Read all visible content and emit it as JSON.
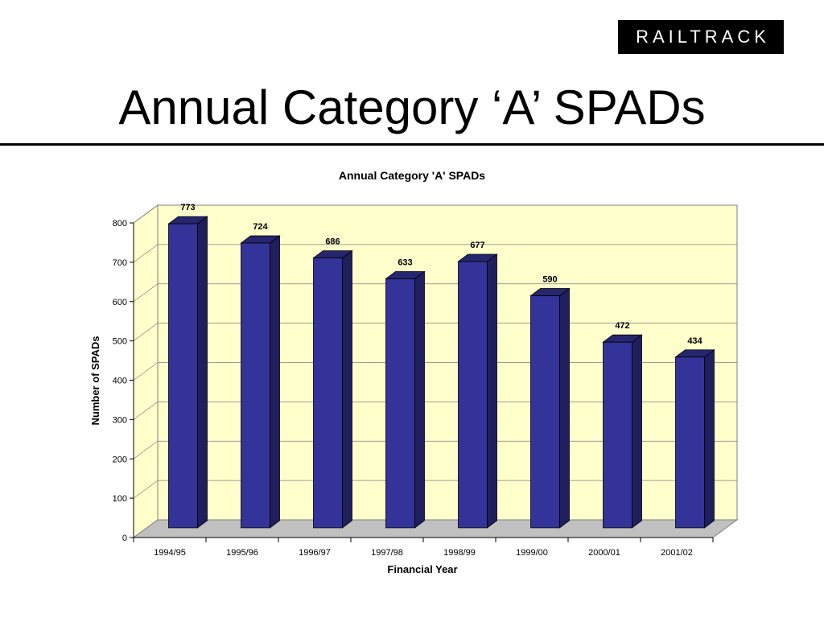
{
  "slide": {
    "logo": "RAILTRACK",
    "title": "Annual Category ‘A’ SPADs"
  },
  "chart_data": {
    "type": "bar",
    "title": "Annual Category 'A' SPADs",
    "xlabel": "Financial Year",
    "ylabel": "Number of SPADs",
    "categories": [
      "1994/95",
      "1995/96",
      "1996/97",
      "1997/98",
      "1998/99",
      "1999/00",
      "2000/01",
      "2001/02"
    ],
    "values": [
      773,
      724,
      686,
      633,
      677,
      590,
      472,
      434
    ],
    "ylim": [
      0,
      800
    ],
    "yticks": [
      0,
      100,
      200,
      300,
      400,
      500,
      600,
      700,
      800
    ],
    "grid": true,
    "legend": "none",
    "colors": {
      "bar_front": "#333399",
      "bar_side": "#1f1f5e",
      "bar_top": "#26266f",
      "wall": "#ffffcc",
      "floor": "#c0c0c0",
      "gridline": "#808080"
    }
  }
}
